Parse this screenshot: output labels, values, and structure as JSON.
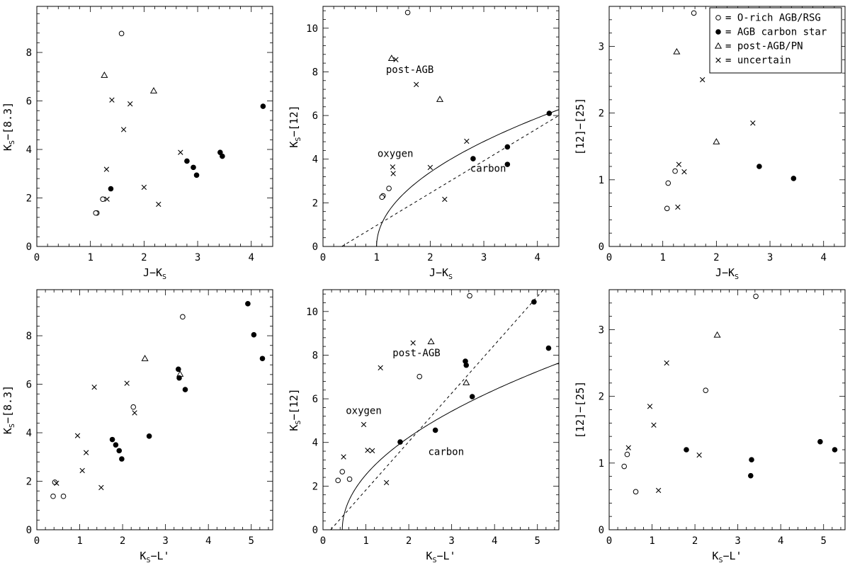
{
  "chart_data": [
    {
      "type": "scatter",
      "xlabel": "J−K",
      "xlabel_sub": "S",
      "xlabel_tail": "",
      "ylabel": "K",
      "ylabel_sub": "S",
      "ylabel_tail": "−[8.3]",
      "xlim": [
        0,
        4.4
      ],
      "ylim": [
        0,
        9.9
      ],
      "xticks": [
        0,
        1,
        2,
        3,
        4
      ],
      "yticks": [
        0,
        2,
        4,
        6,
        8
      ],
      "series": [
        {
          "marker": "open-circle",
          "points": [
            [
              1.58,
              8.78
            ],
            [
              1.12,
              1.38
            ],
            [
              1.1,
              1.38
            ],
            [
              1.23,
              1.95
            ]
          ]
        },
        {
          "marker": "filled-circle",
          "points": [
            [
              4.22,
              5.78
            ],
            [
              3.42,
              3.88
            ],
            [
              3.46,
              3.72
            ],
            [
              2.8,
              3.52
            ],
            [
              2.92,
              3.26
            ],
            [
              2.98,
              2.94
            ],
            [
              1.38,
              2.38
            ]
          ]
        },
        {
          "marker": "triangle",
          "points": [
            [
              1.26,
              7.06
            ],
            [
              2.18,
              6.42
            ]
          ]
        },
        {
          "marker": "cross",
          "points": [
            [
              1.4,
              6.04
            ],
            [
              1.74,
              5.88
            ],
            [
              1.62,
              4.82
            ],
            [
              2.68,
              3.88
            ],
            [
              1.3,
              3.18
            ],
            [
              2.0,
              2.44
            ],
            [
              1.31,
              1.95
            ],
            [
              2.27,
              1.74
            ]
          ]
        }
      ],
      "lines": [],
      "annotations": []
    },
    {
      "type": "scatter",
      "xlabel": "J−K",
      "xlabel_sub": "S",
      "xlabel_tail": "",
      "ylabel": "K",
      "ylabel_sub": "S",
      "ylabel_tail": "−[12]",
      "xlim": [
        0,
        4.4
      ],
      "ylim": [
        0,
        11.0
      ],
      "xticks": [
        0,
        1,
        2,
        3,
        4
      ],
      "yticks": [
        0,
        2,
        4,
        6,
        8,
        10
      ],
      "series": [
        {
          "marker": "open-circle",
          "points": [
            [
              1.58,
              10.72
            ],
            [
              1.23,
              2.66
            ],
            [
              1.12,
              2.32
            ],
            [
              1.1,
              2.26
            ]
          ]
        },
        {
          "marker": "filled-circle",
          "points": [
            [
              4.22,
              6.1
            ],
            [
              3.44,
              4.56
            ],
            [
              2.8,
              4.02
            ],
            [
              3.44,
              3.76
            ]
          ]
        },
        {
          "marker": "triangle",
          "points": [
            [
              1.28,
              8.62
            ],
            [
              2.18,
              6.74
            ]
          ]
        },
        {
          "marker": "cross",
          "points": [
            [
              1.36,
              8.56
            ],
            [
              1.74,
              7.42
            ],
            [
              2.68,
              4.82
            ],
            [
              1.3,
              3.64
            ],
            [
              1.31,
              3.34
            ],
            [
              2.0,
              3.62
            ],
            [
              2.27,
              2.16
            ]
          ]
        }
      ],
      "lines": [
        {
          "style": "solid",
          "type": "sqrt",
          "origin": [
            1.0,
            0.0
          ],
          "coef": 3.4,
          "xmax": 4.4
        },
        {
          "style": "dashed",
          "points": [
            [
              0.35,
              0.0
            ],
            [
              4.4,
              6.0
            ]
          ]
        }
      ],
      "annotations": [
        {
          "text": "post-AGB",
          "x": 1.62,
          "y": 7.95
        },
        {
          "text": "oxygen",
          "x": 1.35,
          "y": 4.1
        },
        {
          "text": "carbon",
          "x": 3.08,
          "y": 3.42
        }
      ]
    },
    {
      "type": "scatter",
      "xlabel": "J−K",
      "xlabel_sub": "S",
      "xlabel_tail": "",
      "ylabel": "[12]−[25]",
      "ylabel_sub": "",
      "ylabel_tail": "",
      "xlim": [
        0,
        4.4
      ],
      "ylim": [
        0,
        3.6
      ],
      "xticks": [
        0,
        1,
        2,
        3,
        4
      ],
      "yticks": [
        0,
        1,
        2,
        3
      ],
      "series": [
        {
          "marker": "open-circle",
          "points": [
            [
              1.58,
              3.5
            ],
            [
              1.23,
              1.13
            ],
            [
              1.1,
              0.95
            ],
            [
              1.08,
              0.57
            ]
          ]
        },
        {
          "marker": "filled-circle",
          "points": [
            [
              2.8,
              1.2
            ],
            [
              3.44,
              1.02
            ]
          ]
        },
        {
          "marker": "triangle",
          "points": [
            [
              1.26,
              2.92
            ],
            [
              2.0,
              1.57
            ]
          ]
        },
        {
          "marker": "cross",
          "points": [
            [
              1.74,
              2.5
            ],
            [
              2.68,
              1.85
            ],
            [
              1.3,
              1.23
            ],
            [
              1.4,
              1.12
            ],
            [
              1.28,
              0.59
            ]
          ]
        }
      ],
      "lines": [],
      "annotations": [],
      "legend": {
        "placement": "top-right",
        "entries": [
          {
            "marker": "open-circle",
            "label": "= O-rich AGB/RSG"
          },
          {
            "marker": "filled-circle",
            "label": "= AGB carbon star"
          },
          {
            "marker": "triangle",
            "label": "= post-AGB/PN"
          },
          {
            "marker": "cross",
            "label": "= uncertain"
          }
        ]
      }
    },
    {
      "type": "scatter",
      "xlabel": "K",
      "xlabel_sub": "S",
      "xlabel_tail": "−L'",
      "ylabel": "K",
      "ylabel_sub": "S",
      "ylabel_tail": "−[8.3]",
      "xlim": [
        0,
        5.5
      ],
      "ylim": [
        0,
        9.9
      ],
      "xticks": [
        0,
        1,
        2,
        3,
        4,
        5
      ],
      "yticks": [
        0,
        2,
        4,
        6,
        8
      ],
      "series": [
        {
          "marker": "open-circle",
          "points": [
            [
              3.4,
              8.78
            ],
            [
              2.25,
              5.06
            ],
            [
              0.42,
              1.96
            ],
            [
              0.38,
              1.38
            ],
            [
              0.62,
              1.38
            ]
          ]
        },
        {
          "marker": "filled-circle",
          "points": [
            [
              4.92,
              9.32
            ],
            [
              5.06,
              8.04
            ],
            [
              5.26,
              7.06
            ],
            [
              3.3,
              6.62
            ],
            [
              3.32,
              6.26
            ],
            [
              3.46,
              5.78
            ],
            [
              2.62,
              3.86
            ],
            [
              1.76,
              3.72
            ],
            [
              1.84,
              3.5
            ],
            [
              1.92,
              3.26
            ],
            [
              1.98,
              2.92
            ]
          ]
        },
        {
          "marker": "triangle",
          "points": [
            [
              2.52,
              7.06
            ],
            [
              3.34,
              6.42
            ]
          ]
        },
        {
          "marker": "cross",
          "points": [
            [
              1.34,
              5.88
            ],
            [
              2.1,
              6.04
            ],
            [
              2.28,
              4.82
            ],
            [
              0.95,
              3.88
            ],
            [
              1.15,
              3.18
            ],
            [
              1.06,
              2.44
            ],
            [
              1.5,
              1.74
            ],
            [
              0.46,
              1.92
            ]
          ]
        }
      ],
      "lines": [],
      "annotations": []
    },
    {
      "type": "scatter",
      "xlabel": "K",
      "xlabel_sub": "S",
      "xlabel_tail": "−L'",
      "ylabel": "K",
      "ylabel_sub": "S",
      "ylabel_tail": "−[12]",
      "xlim": [
        0,
        5.5
      ],
      "ylim": [
        0,
        11.0
      ],
      "xticks": [
        0,
        1,
        2,
        3,
        4,
        5
      ],
      "yticks": [
        0,
        2,
        4,
        6,
        8,
        10
      ],
      "series": [
        {
          "marker": "open-circle",
          "points": [
            [
              3.42,
              10.72
            ],
            [
              2.25,
              7.02
            ],
            [
              0.45,
              2.66
            ],
            [
              0.62,
              2.32
            ],
            [
              0.35,
              2.26
            ]
          ]
        },
        {
          "marker": "filled-circle",
          "points": [
            [
              4.92,
              10.44
            ],
            [
              5.26,
              8.32
            ],
            [
              3.32,
              7.72
            ],
            [
              3.34,
              7.54
            ],
            [
              3.48,
              6.1
            ],
            [
              2.62,
              4.56
            ],
            [
              1.8,
              4.02
            ]
          ]
        },
        {
          "marker": "triangle",
          "points": [
            [
              2.52,
              8.62
            ],
            [
              3.34,
              6.74
            ]
          ]
        },
        {
          "marker": "cross",
          "points": [
            [
              2.1,
              8.56
            ],
            [
              1.34,
              7.42
            ],
            [
              0.95,
              4.82
            ],
            [
              1.04,
              3.64
            ],
            [
              1.15,
              3.62
            ],
            [
              0.48,
              3.34
            ],
            [
              1.48,
              2.16
            ]
          ]
        }
      ],
      "lines": [
        {
          "style": "solid",
          "type": "sqrt",
          "origin": [
            0.45,
            0.0
          ],
          "coef": 3.4,
          "xmax": 5.5
        },
        {
          "style": "dashed",
          "points": [
            [
              0.18,
              0.0
            ],
            [
              5.5,
              11.8
            ]
          ]
        }
      ],
      "annotations": [
        {
          "text": "post-AGB",
          "x": 2.18,
          "y": 7.95
        },
        {
          "text": "oxygen",
          "x": 0.95,
          "y": 5.3
        },
        {
          "text": "carbon",
          "x": 2.87,
          "y": 3.42
        }
      ]
    },
    {
      "type": "scatter",
      "xlabel": "K",
      "xlabel_sub": "S",
      "xlabel_tail": "−L'",
      "ylabel": "[12]−[25]",
      "ylabel_sub": "",
      "ylabel_tail": "",
      "xlim": [
        0,
        5.5
      ],
      "ylim": [
        0,
        3.6
      ],
      "xticks": [
        0,
        1,
        2,
        3,
        4,
        5
      ],
      "yticks": [
        0,
        1,
        2,
        3
      ],
      "series": [
        {
          "marker": "open-circle",
          "points": [
            [
              3.42,
              3.5
            ],
            [
              2.25,
              2.09
            ],
            [
              0.42,
              1.13
            ],
            [
              0.35,
              0.95
            ],
            [
              0.62,
              0.57
            ]
          ]
        },
        {
          "marker": "filled-circle",
          "points": [
            [
              1.8,
              1.2
            ],
            [
              4.92,
              1.32
            ],
            [
              5.26,
              1.2
            ],
            [
              3.32,
              1.05
            ],
            [
              3.3,
              0.81
            ]
          ]
        },
        {
          "marker": "triangle",
          "points": [
            [
              2.52,
              2.92
            ]
          ]
        },
        {
          "marker": "cross",
          "points": [
            [
              1.34,
              2.5
            ],
            [
              0.95,
              1.85
            ],
            [
              1.04,
              1.57
            ],
            [
              0.45,
              1.23
            ],
            [
              2.1,
              1.12
            ],
            [
              1.15,
              0.59
            ]
          ]
        }
      ],
      "lines": [],
      "annotations": []
    }
  ]
}
